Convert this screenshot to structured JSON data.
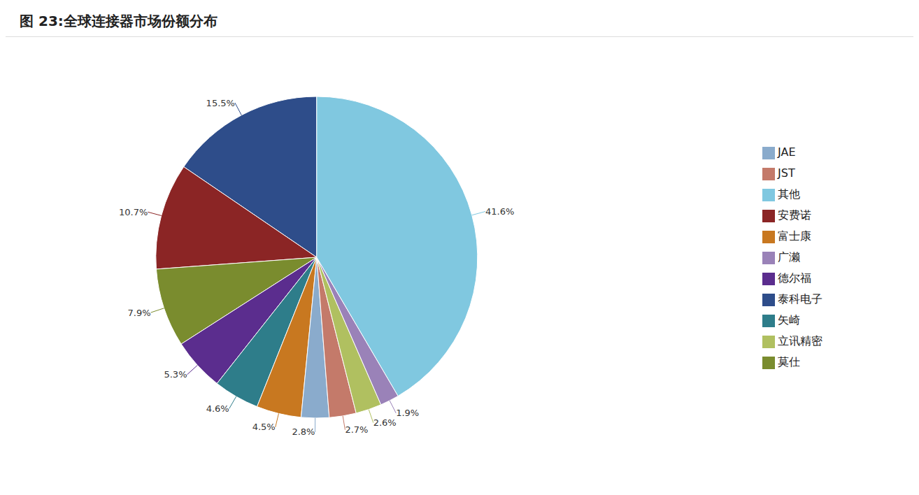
{
  "chart_data": {
    "type": "pie",
    "title": "图 23:全球连接器市场份额分布",
    "categories": [
      "泰科电子",
      "安费诺",
      "莫仕",
      "德尔福",
      "矢崎",
      "富士康",
      "JAE",
      "JST",
      "立讯精密",
      "广濑",
      "其他"
    ],
    "values": [
      15.5,
      10.7,
      7.9,
      5.3,
      4.6,
      4.5,
      2.8,
      2.7,
      2.6,
      1.9,
      41.6
    ],
    "value_labels": [
      "15.5%",
      "10.7%",
      "7.9%",
      "5.3%",
      "4.6%",
      "4.5%",
      "2.8%",
      "2.7%",
      "2.6%",
      "1.9%",
      "41.6%"
    ],
    "colors": [
      "#2e4d8a",
      "#8b2525",
      "#7a8c2e",
      "#5b2d8e",
      "#2e7d8a",
      "#c87820",
      "#8aabcc",
      "#c47a6a",
      "#b0c060",
      "#9a82b8",
      "#80c8e0"
    ],
    "legend": "right",
    "data_labels": true
  }
}
